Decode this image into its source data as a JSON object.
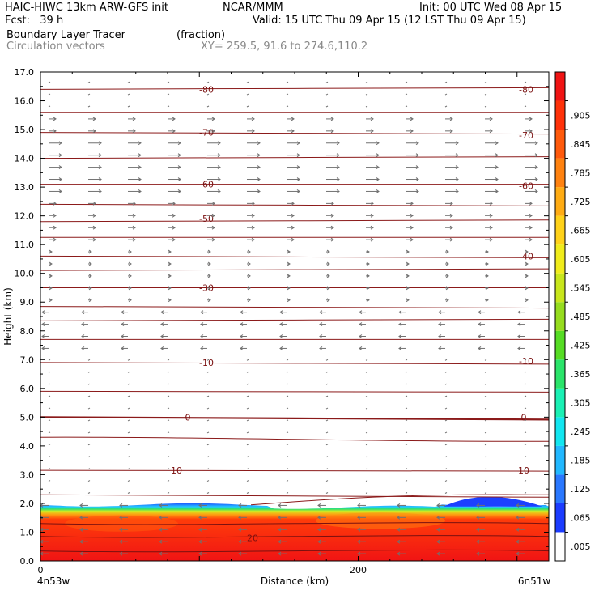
{
  "header": {
    "model": "HAIC-HIWC 13km ARW-GFS init",
    "org": "NCAR/MMM",
    "init": "Init: 00 UTC Wed 08 Apr 15",
    "fcst": "Fcst:   39 h",
    "valid": "Valid: 15 UTC Thu 09 Apr 15 (12 LST Thu 09 Apr 15)",
    "field": "Boundary Layer Tracer",
    "units": "(fraction)",
    "vectors": "Circulation vectors",
    "xy": "XY= 259.5, 91.6 to 274.6,110.2"
  },
  "chart_data": {
    "type": "heatmap",
    "title": "Boundary Layer Tracer",
    "xlabel": "Distance (km)",
    "ylabel": "Height (km)",
    "xlim": [
      0,
      320
    ],
    "ylim": [
      0,
      17
    ],
    "x_ticks": [
      0,
      200
    ],
    "x_tick_labels": [
      "0",
      "200"
    ],
    "x_endpoints": [
      "4n53w",
      "6n51w"
    ],
    "y_ticks": [
      0,
      1,
      2,
      3,
      4,
      5,
      6,
      7,
      8,
      9,
      10,
      11,
      12,
      13,
      14,
      15,
      16,
      17
    ],
    "y_tick_labels": [
      "0.0",
      "1.0",
      "2.0",
      "3.0",
      "4.0",
      "5.0",
      "6.0",
      "7.0",
      "8.0",
      "9.0",
      "10.0",
      "11.0",
      "12.0",
      "13.0",
      "14.0",
      "15.0",
      "16.0",
      "17.0"
    ],
    "colorbar": {
      "labels": [
        ".005",
        ".065",
        ".125",
        ".185",
        ".245",
        ".305",
        ".365",
        ".425",
        ".485",
        ".545",
        ".605",
        ".665",
        ".725",
        ".785",
        ".845",
        ".905"
      ],
      "colors": [
        "#ffffff",
        "#1c3cff",
        "#2a78ff",
        "#22b8ff",
        "#12e6f0",
        "#1af0b4",
        "#2ae46a",
        "#56dc24",
        "#96dc1e",
        "#c8e61c",
        "#f0ec1c",
        "#ffd21a",
        "#ffac14",
        "#ff8210",
        "#ff5a0c",
        "#ff320a",
        "#f01414"
      ]
    },
    "temperature_contour_labels": [
      "-80",
      "-80",
      "-70",
      "-70",
      "-60",
      "-60",
      "-50",
      "-40",
      "-30",
      "-10",
      "-10",
      "0",
      "0",
      "10",
      "10",
      "20"
    ],
    "mixed_layer_top_km": 1.95,
    "vector_color": "#707070",
    "contour_color": "#8b1a1a"
  }
}
